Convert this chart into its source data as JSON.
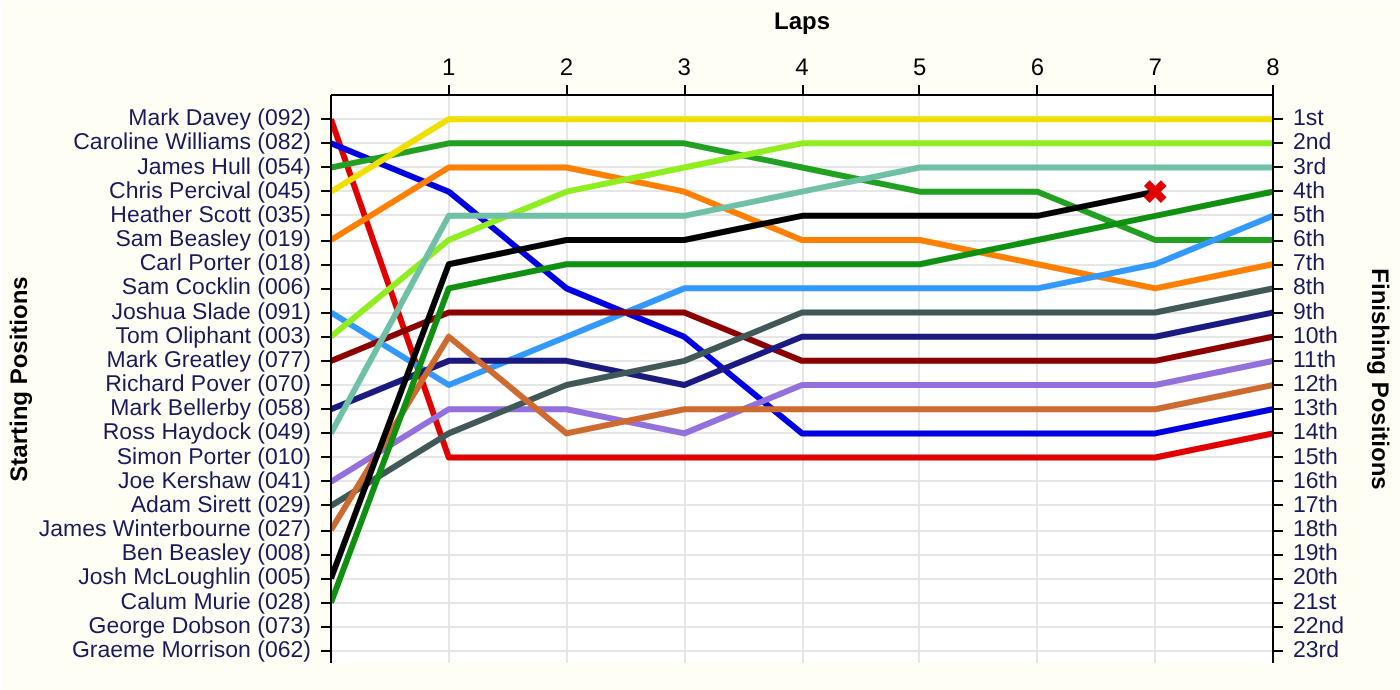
{
  "chart_data": {
    "type": "line",
    "xlabel": "Laps",
    "annotations": [
      "Starting Positions"
    ],
    "y2label": "Finishing Positions",
    "x": [
      0,
      1,
      2,
      3,
      4,
      5,
      6,
      7,
      8
    ],
    "xlim": [
      0,
      8
    ],
    "xticks": [
      1,
      2,
      3,
      4,
      5,
      6,
      7,
      8
    ],
    "y_categories": [
      "Mark Davey (092)",
      "Caroline Williams (082)",
      "James Hull (054)",
      "Chris Percival (045)",
      "Heather Scott (035)",
      "Sam Beasley (019)",
      "Carl Porter (018)",
      "Sam Cocklin (006)",
      "Joshua Slade (091)",
      "Tom Oliphant (003)",
      "Mark Greatley (077)",
      "Richard Pover (070)",
      "Mark Bellerby (058)",
      "Ross Haydock (049)",
      "Simon Porter (010)",
      "Joe Kershaw (041)",
      "Adam Sirett (029)",
      "James Winterbourne (027)",
      "Ben Beasley (008)",
      "Josh McLoughlin (005)",
      "Calum Murie (028)",
      "George Dobson (073)",
      "Graeme Morrison (062)"
    ],
    "y2lim": [
      23.5,
      0
    ],
    "y2ticks": [
      {
        "value": 1,
        "label": "1st"
      },
      {
        "value": 2,
        "label": "2nd"
      },
      {
        "value": 3,
        "label": "3rd"
      },
      {
        "value": 4,
        "label": "4th"
      },
      {
        "value": 5,
        "label": "5th"
      },
      {
        "value": 6,
        "label": "6th"
      },
      {
        "value": 7,
        "label": "7th"
      },
      {
        "value": 8,
        "label": "8th"
      },
      {
        "value": 9,
        "label": "9th"
      },
      {
        "value": 10,
        "label": "10th"
      },
      {
        "value": 11,
        "label": "11th"
      },
      {
        "value": 12,
        "label": "12th"
      },
      {
        "value": 13,
        "label": "13th"
      },
      {
        "value": 14,
        "label": "14th"
      },
      {
        "value": 15,
        "label": "15th"
      },
      {
        "value": 16,
        "label": "16th"
      },
      {
        "value": 17,
        "label": "17th"
      },
      {
        "value": 18,
        "label": "18th"
      },
      {
        "value": 19,
        "label": "19th"
      },
      {
        "value": 20,
        "label": "20th"
      },
      {
        "value": 21,
        "label": "21st"
      },
      {
        "value": 22,
        "label": "22nd"
      },
      {
        "value": 23,
        "label": "23rd"
      }
    ],
    "grid": true,
    "series": [
      {
        "axis": "y2",
        "color": "#e00000",
        "values": [
          1,
          15,
          15,
          15,
          15,
          15,
          15,
          15,
          14
        ]
      },
      {
        "axis": "y2",
        "color": "#0000e0",
        "values": [
          2,
          4,
          8,
          10,
          14,
          14,
          14,
          14,
          13
        ]
      },
      {
        "axis": "y2",
        "color": "#22a022",
        "values": [
          3,
          2,
          2,
          2,
          3,
          4,
          4,
          6,
          6
        ]
      },
      {
        "axis": "y2",
        "color": "#f0e000",
        "values": [
          4,
          1,
          1,
          1,
          1,
          1,
          1,
          1,
          1
        ]
      },
      {
        "axis": "y2",
        "color": "#ff8000",
        "values": [
          6,
          3,
          3,
          4,
          6,
          6,
          7,
          8,
          7
        ]
      },
      {
        "axis": "y2",
        "color": "#3399ff",
        "values": [
          9,
          12,
          10,
          8,
          8,
          8,
          8,
          7,
          5
        ]
      },
      {
        "axis": "y2",
        "color": "#90ee20",
        "values": [
          10,
          6,
          4,
          3,
          2,
          2,
          2,
          2,
          2
        ]
      },
      {
        "axis": "y2",
        "color": "#8b0000",
        "values": [
          11,
          9,
          9,
          9,
          11,
          11,
          11,
          11,
          10
        ]
      },
      {
        "axis": "y2",
        "color": "#1a1a80",
        "values": [
          13,
          11,
          11,
          12,
          10,
          10,
          10,
          10,
          9
        ]
      },
      {
        "axis": "y2",
        "color": "#70c0a8",
        "values": [
          14,
          5,
          5,
          5,
          4,
          3,
          3,
          3,
          3
        ]
      },
      {
        "axis": "y2",
        "color": "#9370db",
        "values": [
          16,
          13,
          13,
          14,
          12,
          12,
          12,
          12,
          11
        ]
      },
      {
        "axis": "y2",
        "color": "#405858",
        "values": [
          17,
          14,
          12,
          11,
          9,
          9,
          9,
          9,
          8
        ]
      },
      {
        "axis": "y2",
        "color": "#cd6a30",
        "values": [
          18,
          10,
          14,
          13,
          13,
          13,
          13,
          13,
          12
        ]
      },
      {
        "axis": "y2",
        "color": "#000000",
        "values": [
          20,
          7,
          6,
          6,
          5,
          5,
          5,
          4,
          null
        ]
      },
      {
        "axis": "y2",
        "color": "#109010",
        "values": [
          21,
          8,
          7,
          7,
          7,
          7,
          6,
          5,
          4
        ]
      },
      {
        "axis": "y2",
        "type": "scatter",
        "marker": "cross",
        "color": "#e00000",
        "x": [
          7
        ],
        "values": [
          4
        ]
      }
    ]
  }
}
